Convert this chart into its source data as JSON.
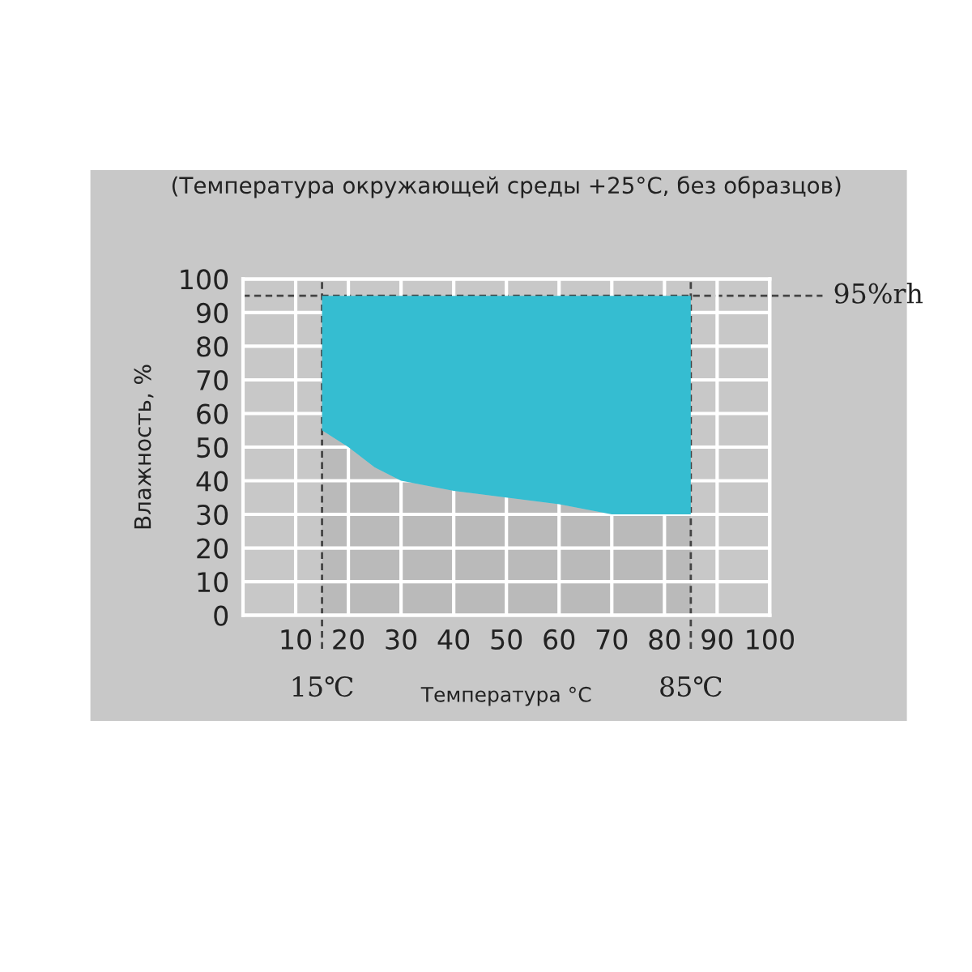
{
  "chart_data": {
    "type": "area",
    "title": "(Температура окружающей среды +25°C, без образцов)",
    "xlabel": "Температура °C",
    "ylabel": "Влажность, %",
    "series": [
      {
        "color": "#bababa",
        "x": [
          15,
          20,
          25,
          30,
          40,
          50,
          60,
          70,
          85
        ],
        "values": [
          55,
          50,
          44,
          40,
          37,
          35,
          33,
          30,
          30
        ]
      },
      {
        "color": "#35bdd1",
        "x": [
          15,
          20,
          25,
          30,
          40,
          50,
          60,
          70,
          85
        ],
        "values": [
          40,
          45,
          51,
          55,
          58,
          60,
          62,
          65,
          65
        ]
      }
    ],
    "xlim": [
      0,
      100
    ],
    "xticks": [
      10,
      20,
      30,
      40,
      50,
      60,
      70,
      80,
      90,
      100
    ],
    "ylim": [
      0,
      100
    ],
    "yticks": [
      0,
      10,
      20,
      30,
      40,
      50,
      60,
      70,
      80,
      90,
      100
    ],
    "stacked": true,
    "grid": true,
    "ref_lines": [
      {
        "axis": "x",
        "value": 15,
        "label": "15℃",
        "line_style": "dashed",
        "color": "#444444"
      },
      {
        "axis": "x",
        "value": 85,
        "label": "85℃",
        "line_style": "dashed",
        "color": "#444444"
      },
      {
        "axis": "y",
        "value": 95,
        "label": "95%rh",
        "line_style": "dashed",
        "color": "#444444"
      }
    ]
  }
}
